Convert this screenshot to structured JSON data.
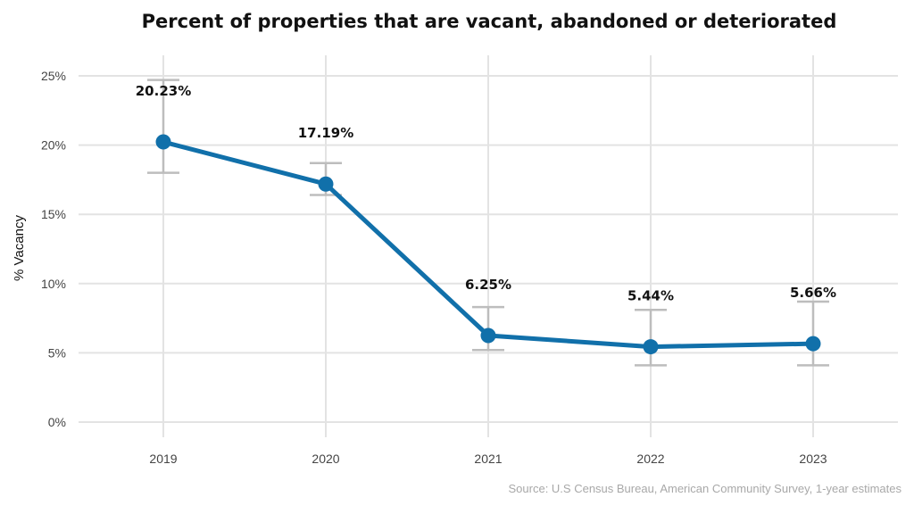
{
  "chart_data": {
    "type": "line",
    "title": "Percent of properties that are vacant, abandoned or deteriorated",
    "xlabel": "",
    "ylabel": "% Vacancy",
    "source": "Source: U.S Census Bureau, American Community Survey, 1-year estimates",
    "categories": [
      "2019",
      "2020",
      "2021",
      "2022",
      "2023"
    ],
    "ylim": [
      0,
      25
    ],
    "yticks": [
      0,
      5,
      10,
      15,
      20,
      25
    ],
    "ytick_labels": [
      "0%",
      "5%",
      "10%",
      "15%",
      "20%",
      "25%"
    ],
    "grid": true,
    "legend": "none",
    "series": [
      {
        "values": [
          20.23,
          17.19,
          6.25,
          5.44,
          5.66
        ],
        "labels": [
          "20.23%",
          "17.19%",
          "6.25%",
          "5.44%",
          "5.66%"
        ],
        "error_low": [
          18.0,
          16.4,
          5.2,
          4.1,
          4.1
        ],
        "error_high": [
          24.7,
          18.7,
          8.3,
          8.1,
          8.7
        ],
        "color": "#1170aa"
      }
    ],
    "errorbar_color": "#bdbdbd"
  }
}
